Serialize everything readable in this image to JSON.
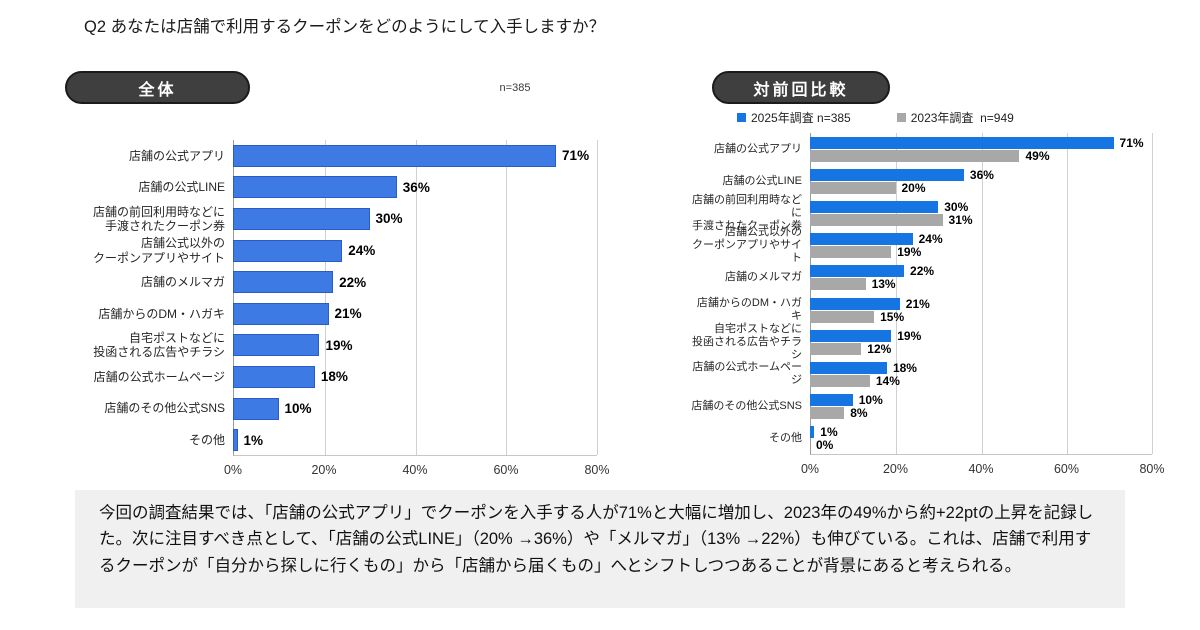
{
  "title": "Q2 あなたは店舗で利用するクーポンをどのようにして入手しますか？",
  "summary": "今回の調査結果では、「店舗の公式アプリ」でクーポンを入手する人が71%と大幅に増加し、2023年の49%から約+22ptの上昇を記録した。次に注目すべき点として、「店舗の公式LINE」（20% →36%）や「メルマガ」（13% →22%）も伸びている。これは、店舗で利用するクーポンが「自分から探しに行くもの」から「店舗から届くもの」へとシフトしつつあることが背景にあると考えられる。",
  "colors": {
    "overall_bar": "#3E7AE4",
    "overall_bar_border": "#2A5CC8",
    "blue_2025": "#1774E3",
    "gray_2023": "#A8A8A8",
    "badge_bg": "#3f3f3f",
    "summary_bg": "#f0f0f0"
  },
  "chart_data": [
    {
      "type": "bar",
      "orientation": "horizontal",
      "title": "全体",
      "n": "n=385",
      "categories": [
        "店舗の公式アプリ",
        "店舗の公式LINE",
        "店舗の前回利用時などに\n手渡されたクーポン券",
        "店舗公式以外の\nクーポンアプリやサイト",
        "店舗のメルマガ",
        "店舗からのDM・ハガキ",
        "自宅ポストなどに\n投函される広告やチラシ",
        "店舗の公式ホームページ",
        "店舗のその他公式SNS",
        "その他"
      ],
      "values": [
        71,
        36,
        30,
        24,
        22,
        21,
        19,
        18,
        10,
        1
      ],
      "bar_color": "#3E7AE4",
      "bar_border": "#2A5CC8",
      "xlim": [
        0,
        80
      ],
      "x_tick_labels": [
        "0%",
        "20%",
        "40%",
        "60%",
        "80%"
      ],
      "grid": true,
      "legend_position": "none"
    },
    {
      "type": "bar",
      "orientation": "horizontal",
      "title": "対前回比較",
      "categories": [
        "店舗の公式アプリ",
        "店舗の公式LINE",
        "店舗の前回利用時などに\n手渡されたクーポン券",
        "店舗公式以外の\nクーポンアプリやサイト",
        "店舗のメルマガ",
        "店舗からのDM・ハガキ",
        "自宅ポストなどに\n投函される広告やチラシ",
        "店舗の公式ホームページ",
        "店舗のその他公式SNS",
        "その他"
      ],
      "series": [
        {
          "name": "2025年調査 n=385",
          "color": "#1774E3",
          "values": [
            71,
            36,
            30,
            24,
            22,
            21,
            19,
            18,
            10,
            1
          ]
        },
        {
          "name": "2023年調査  n=949",
          "color": "#A8A8A8",
          "values": [
            49,
            20,
            31,
            19,
            13,
            15,
            12,
            14,
            8,
            0
          ]
        }
      ],
      "xlim": [
        0,
        80
      ],
      "x_tick_labels": [
        "0%",
        "20%",
        "40%",
        "60%",
        "80%"
      ],
      "grid": true,
      "legend_position": "top"
    }
  ]
}
